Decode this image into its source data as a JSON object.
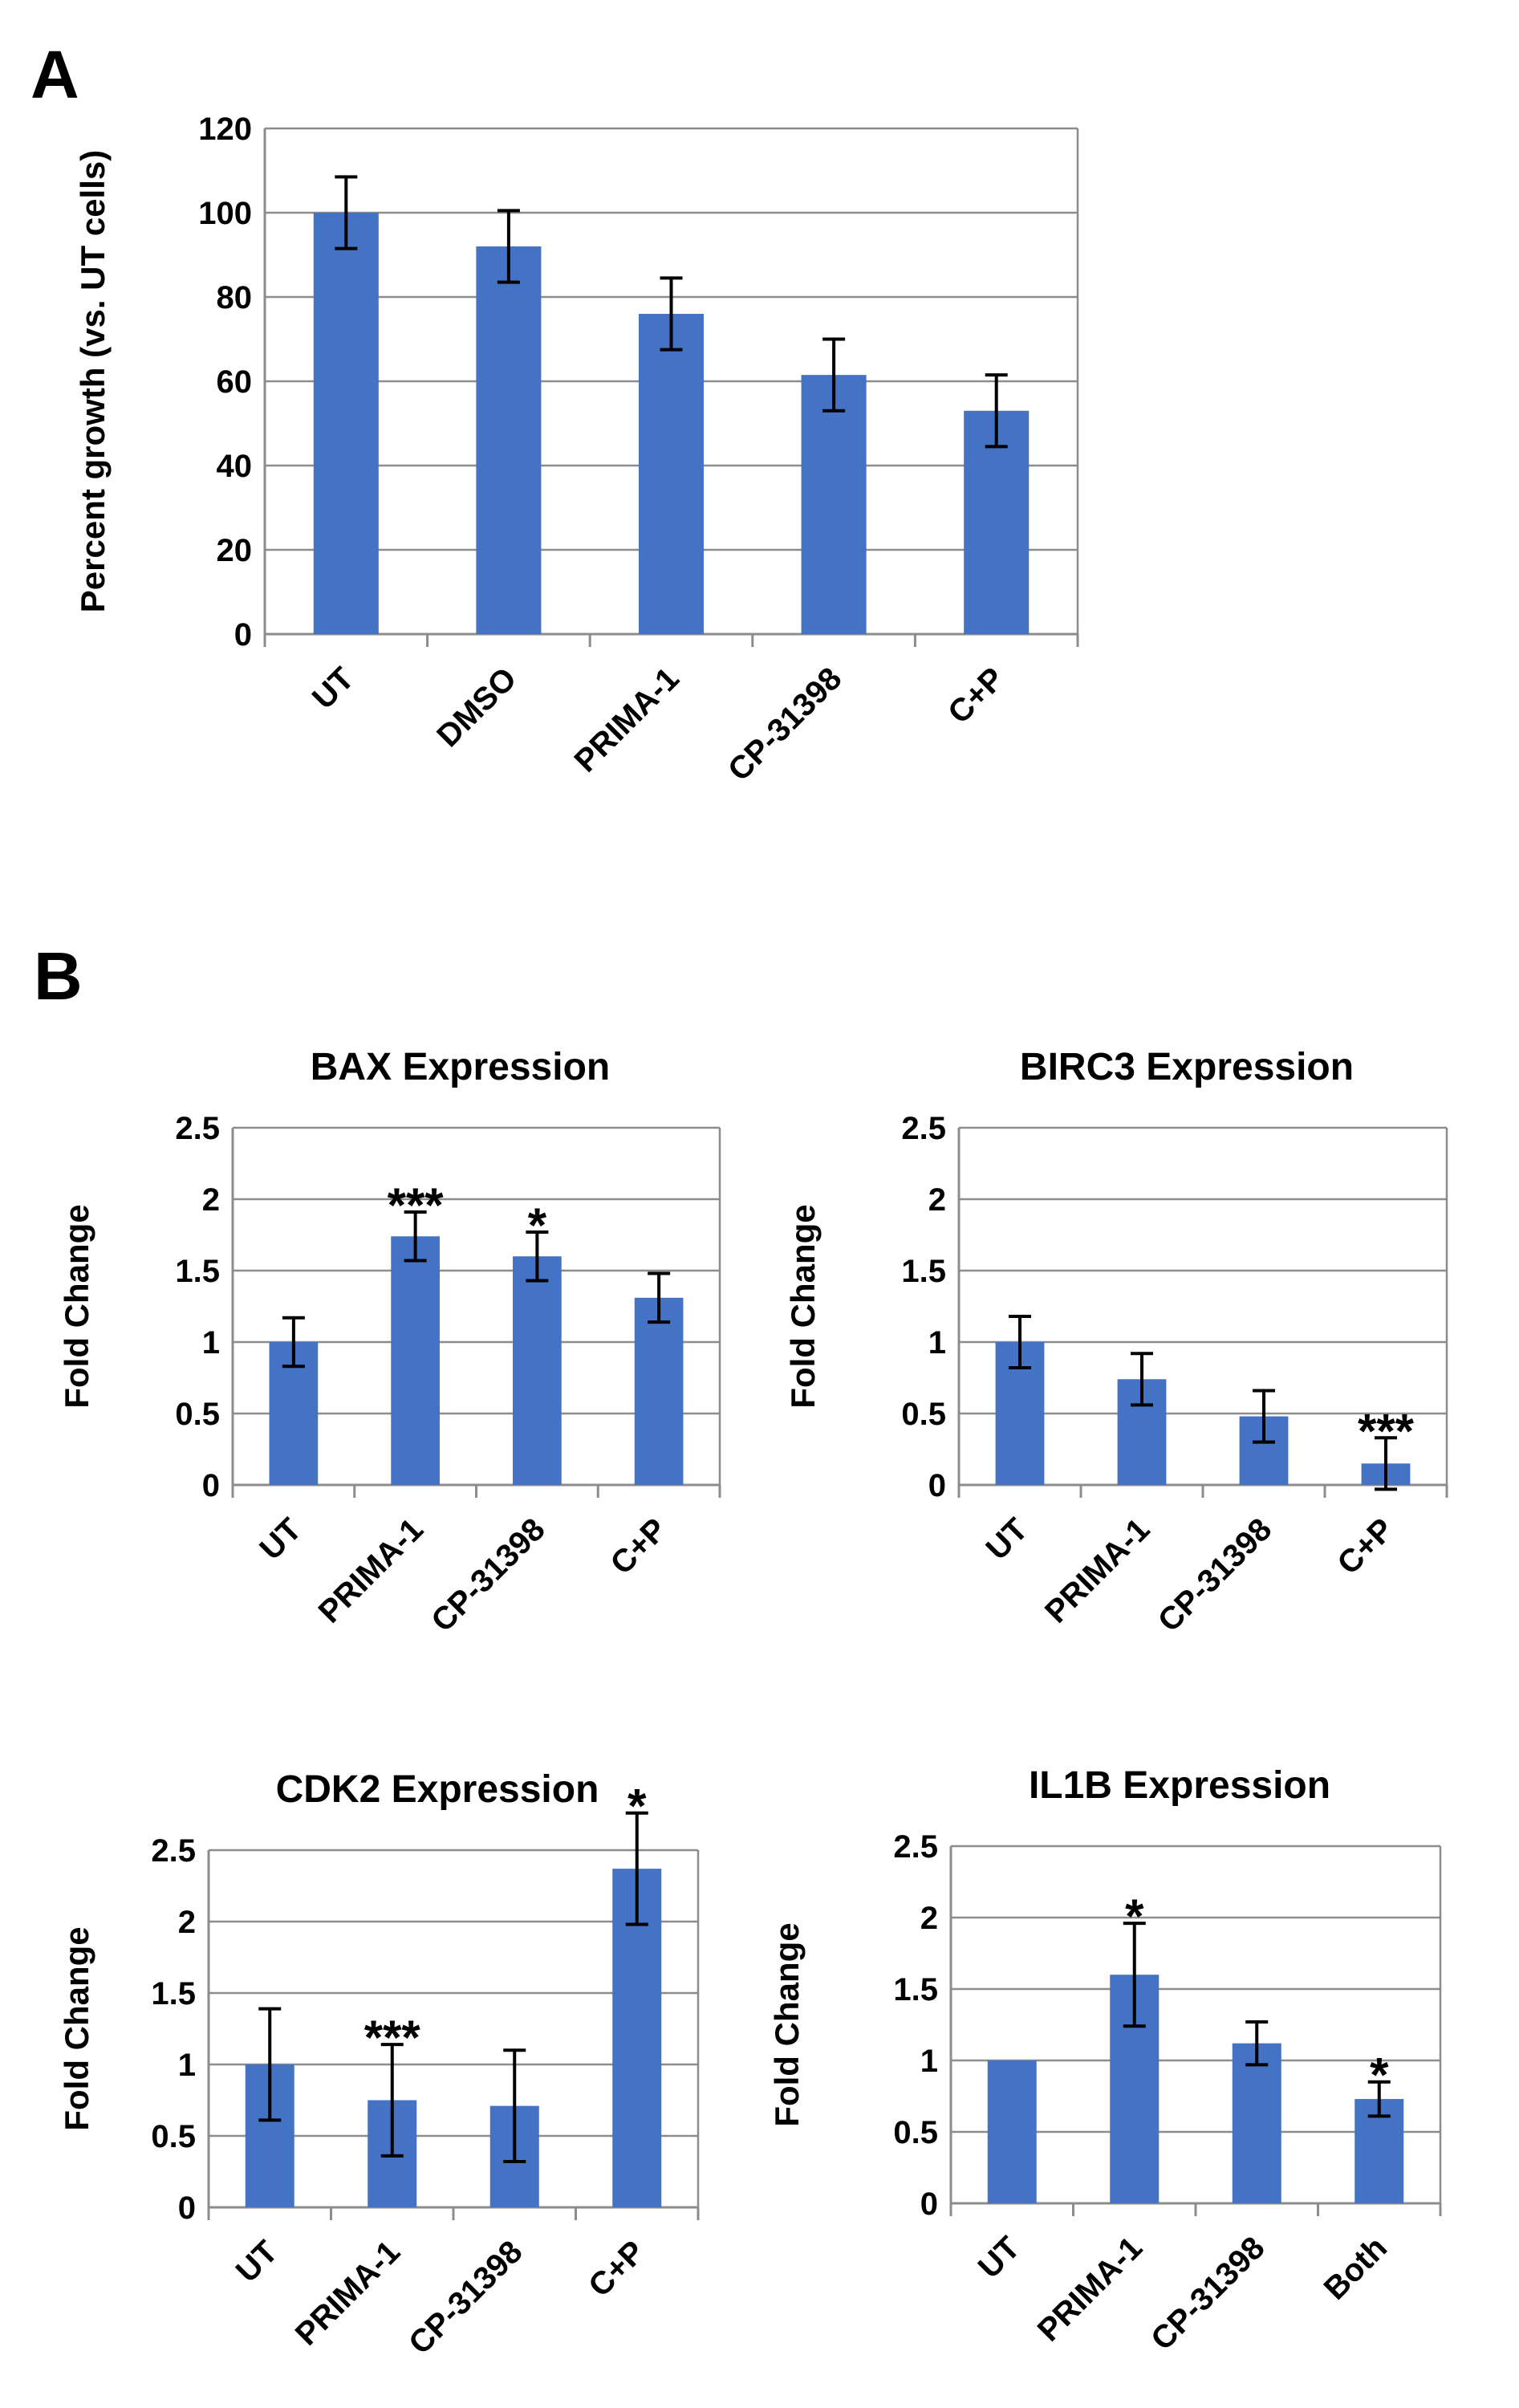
{
  "panels": [
    {
      "letter": "A"
    },
    {
      "letter": "B"
    }
  ],
  "chart_data": [
    {
      "type": "bar",
      "panel": "A",
      "title": "",
      "xlabel": "",
      "ylabel": "Percent growth (vs. UT cells)",
      "categories": [
        "UT",
        "DMSO",
        "PRIMA-1",
        "CP-31398",
        "C+P"
      ],
      "values": [
        100,
        92,
        76,
        61.5,
        53
      ],
      "errors": [
        8.5,
        8.5,
        8.5,
        8.5,
        8.5
      ],
      "ylim": [
        0,
        120
      ],
      "yticks": [
        0,
        20,
        40,
        60,
        80,
        100,
        120
      ],
      "annotations": [
        "",
        "",
        "",
        "",
        ""
      ],
      "grid": true,
      "color": "#4472C4"
    },
    {
      "type": "bar",
      "panel": "B",
      "title": "BAX Expression",
      "xlabel": "",
      "ylabel": "Fold Change",
      "categories": [
        "UT",
        "PRIMA-1",
        "CP-31398",
        "C+P"
      ],
      "values": [
        1.0,
        1.74,
        1.6,
        1.31
      ],
      "errors": [
        0.17,
        0.17,
        0.17,
        0.17
      ],
      "ylim": [
        0,
        2.5
      ],
      "yticks": [
        0,
        0.5,
        1,
        1.5,
        2,
        2.5
      ],
      "annotations": [
        "",
        "***",
        "*",
        ""
      ],
      "grid": true,
      "color": "#4472C4"
    },
    {
      "type": "bar",
      "panel": "B",
      "title": "BIRC3 Expression",
      "xlabel": "",
      "ylabel": "Fold Change",
      "categories": [
        "UT",
        "PRIMA-1",
        "CP-31398",
        "C+P"
      ],
      "values": [
        1.0,
        0.74,
        0.48,
        0.15
      ],
      "errors": [
        0.18,
        0.18,
        0.18,
        0.18
      ],
      "ylim": [
        0,
        2.5
      ],
      "yticks": [
        0,
        0.5,
        1,
        1.5,
        2,
        2.5
      ],
      "annotations": [
        "",
        "",
        "",
        "***"
      ],
      "grid": true,
      "color": "#4472C4"
    },
    {
      "type": "bar",
      "panel": "B",
      "title": "CDK2 Expression",
      "xlabel": "",
      "ylabel": "Fold Change",
      "categories": [
        "UT",
        "PRIMA-1",
        "CP-31398",
        "C+P"
      ],
      "values": [
        1.0,
        0.75,
        0.71,
        2.37
      ],
      "errors": [
        0.39,
        0.39,
        0.39,
        0.39
      ],
      "ylim": [
        0,
        2.5
      ],
      "yticks": [
        0,
        0.5,
        1,
        1.5,
        2,
        2.5
      ],
      "annotations": [
        "",
        "***",
        "",
        "*"
      ],
      "grid": true,
      "color": "#4472C4"
    },
    {
      "type": "bar",
      "panel": "B",
      "title": "IL1B Expression",
      "xlabel": "",
      "ylabel": "Fold Change",
      "categories": [
        "UT",
        "PRIMA-1",
        "CP-31398",
        "Both"
      ],
      "values": [
        1.0,
        1.6,
        1.12,
        0.73
      ],
      "errors": [
        0,
        0.36,
        0.15,
        0.12
      ],
      "ylim": [
        0,
        2.5
      ],
      "yticks": [
        0,
        0.5,
        1,
        1.5,
        2,
        2.5
      ],
      "annotations": [
        "",
        "*",
        "",
        "*"
      ],
      "grid": true,
      "color": "#4472C4"
    }
  ]
}
